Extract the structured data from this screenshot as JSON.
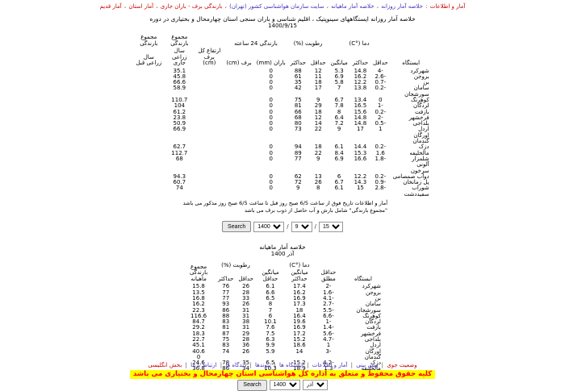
{
  "nav": {
    "items": [
      {
        "label": "آمار و اطلاعات",
        "color": "red",
        "sep": " : "
      },
      {
        "label": "خلاصه آمار روزانه",
        "color": "blue",
        "sep": " ، "
      },
      {
        "label": "خلاصه آمار ماهیانه",
        "color": "blue",
        "sep": " ، "
      },
      {
        "label": "سایت سازمان هواشناسی کشور (تهران)",
        "color": "blue",
        "sep": " ، "
      },
      {
        "label": "بارندگی برف - باران جاری",
        "color": "red",
        "sep": " ، "
      },
      {
        "label": "آمار استان",
        "color": "red",
        "sep": " ، "
      },
      {
        "label": "آمار قدیم",
        "color": "red",
        "sep": ""
      }
    ]
  },
  "title": {
    "line1": "خلاصه آمار روزانه ایستگاههای سینوپتیک ، اقلیم شناسی و باران سنجی استان چهارمحال و بختیاری در دوره",
    "date": "1400/9/15"
  },
  "table1": {
    "headers": {
      "station": "ایستگاه",
      "temp_group": "دما (°C)",
      "t_min": "حداقل",
      "t_max": "حداکثر",
      "t_mean": "میانگین",
      "humidity_group": "رطوبت (%)",
      "rh_min": "حداقل",
      "rh_max": "حداکثر",
      "precip24_group": "بارندگی 24 ساعته",
      "rain_mm": "باران (mm)",
      "snow_cm": "برف (cm)",
      "snow_depth": "ارتفاع کل برف (cm)",
      "total_group": "مجموع بارندگی",
      "year_current": "سال زراعی جاری",
      "year_prev": "سال زراعی قبل"
    },
    "rows": [
      [
        "شهرکرد",
        "-4",
        "14.8",
        "5.3",
        "12",
        "88",
        "0",
        "",
        "",
        "35.1",
        ""
      ],
      [
        "بروجن",
        "-2.6",
        "16.2",
        "6.9",
        "11",
        "61",
        "0",
        "",
        "",
        "45.8",
        ""
      ],
      [
        "بن",
        "-0.7",
        "12.2",
        "5.8",
        "18",
        "35",
        "0",
        "",
        "",
        "66.6",
        ""
      ],
      [
        "سامان",
        "-0.2",
        "13.8",
        "7",
        "17",
        "42",
        "0",
        "",
        "",
        "58.9",
        ""
      ],
      [
        "سورشجان",
        "",
        "",
        "",
        "",
        "",
        "",
        "",
        "",
        "",
        ""
      ],
      [
        "کوهرنگ",
        "0",
        "13.4",
        "6.7",
        "9",
        "75",
        "0",
        "",
        "",
        "110.7",
        ""
      ],
      [
        "لردگان",
        "-1",
        "16.5",
        "7.8",
        "29",
        "81",
        "0",
        "",
        "",
        "104",
        ""
      ],
      [
        "بازفت",
        "-0.2",
        "15.6",
        "8",
        "18",
        "66",
        "0",
        "",
        "",
        "61.2",
        ""
      ],
      [
        "فرخشهر",
        "-2",
        "14.8",
        "6.4",
        "12",
        "68",
        "0",
        "",
        "",
        "23.8",
        ""
      ],
      [
        "بلداجی",
        "-0.5",
        "14.8",
        "7.2",
        "14",
        "80",
        "0",
        "",
        "",
        "50.9",
        ""
      ],
      [
        "اردل",
        "1",
        "17",
        "9",
        "22",
        "73",
        "0",
        "",
        "",
        "66.9",
        ""
      ],
      [
        "اورگان",
        "",
        "",
        "",
        "",
        "",
        "",
        "",
        "",
        "",
        ""
      ],
      [
        "گندمان",
        "",
        "",
        "",
        "",
        "",
        "",
        "",
        "",
        "",
        ""
      ],
      [
        "دزک",
        "-0.2",
        "14.4",
        "6.1",
        "18",
        "94",
        "0",
        "",
        "",
        "62.7",
        ""
      ],
      [
        "مالخلیفه",
        "1.6",
        "15.3",
        "8.4",
        "22",
        "89",
        "0",
        "",
        "",
        "112.7",
        ""
      ],
      [
        "شلمزار",
        "-1.8",
        "16.6",
        "6.9",
        "9",
        "77",
        "0",
        "",
        "",
        "68",
        ""
      ],
      [
        "آلونی",
        "",
        "",
        "",
        "",
        "",
        "",
        "",
        "",
        "",
        ""
      ],
      [
        "سرخون",
        "",
        "",
        "",
        "",
        "",
        "",
        "",
        "",
        "",
        ""
      ],
      [
        "دوآب صمصامی",
        "-0.2",
        "12.2",
        "6",
        "13",
        "62",
        "0",
        "",
        "",
        "94.3",
        ""
      ],
      [
        "پل زمانخان",
        "-0.9",
        "14.3",
        "6.7",
        "26",
        "72",
        "0",
        "",
        "",
        "60.7",
        ""
      ],
      [
        "شوراب",
        "-2.8",
        "15",
        "6.1",
        "8",
        "9",
        "0",
        "",
        "",
        "74",
        ""
      ],
      [
        "سفیددشت",
        "",
        "",
        "",
        "",
        "",
        "",
        "",
        "",
        "",
        ""
      ]
    ]
  },
  "footnotes": {
    "line1": "آمار و اطلاعات تاریخ فوق از ساعت 6/5 صبح روز قبل تا ساعت 6/5 صبح روز مذکور می باشد",
    "line2": "\"مجموع بارندگی\" شامل بارش و آب حاصل از ذوب برف می باشد"
  },
  "daily_form": {
    "search_label": "Search",
    "year": "1400",
    "month": "9",
    "day": "15",
    "separator": "/"
  },
  "monthly": {
    "title": "خلاصه آمار ماهیانه",
    "period": "آذر 1400"
  },
  "table2": {
    "headers": {
      "station": "ایستگاه",
      "temp_group": "دما (°C)",
      "abs_min": "حداقل مطلق",
      "mean_max": "میانگین حداکثر",
      "mean_min": "میانگین حداقل",
      "humidity_group": "رطوبت (%)",
      "rh_min": "حداقل",
      "rh_max": "حداکثر",
      "precip_total": "مجموع بارندگی ماهیانه"
    },
    "rows": [
      [
        "شهرکرد",
        "-2",
        "17.4",
        "6.1",
        "26",
        "76",
        "15.8"
      ],
      [
        "بروجن",
        "-1.6",
        "16.2",
        "6.6",
        "28",
        "77",
        "13.5"
      ],
      [
        "بن",
        "-4.1",
        "16.9",
        "6.5",
        "33",
        "77",
        "16.8"
      ],
      [
        "سامان",
        "-2.7",
        "17.3",
        "8",
        "26",
        "93",
        "16.2"
      ],
      [
        "سورشجان",
        "-5.5",
        "18",
        "7",
        "31",
        "86",
        "22.3"
      ],
      [
        "کوهرنگ",
        "-6.6",
        "16.4",
        "6",
        "31",
        "88",
        "116.6"
      ],
      [
        "لردگان",
        "-1",
        "19.6",
        "10.1",
        "38",
        "83",
        "84.7"
      ],
      [
        "بازفت",
        "-1.4",
        "16.9",
        "7.6",
        "31",
        "81",
        "29.2"
      ],
      [
        "فرخشهر",
        "-5.6",
        "17.2",
        "7.5",
        "29",
        "87",
        "18.3"
      ],
      [
        "بلداجی",
        "-4.7",
        "15.2",
        "6.3",
        "28",
        "75",
        "22.7"
      ],
      [
        "اردل",
        "1",
        "18.6",
        "9.9",
        "36",
        "83",
        "45.1"
      ],
      [
        "اورگان",
        "-3",
        "14",
        "5.9",
        "26",
        "74",
        "40.6"
      ],
      [
        "گندمان",
        "",
        "",
        "",
        "",
        "",
        "0"
      ],
      [
        "دزک",
        "-4.2",
        "15.2",
        "6.5",
        "35",
        "78",
        "24.6"
      ],
      [
        "مالخلیفه",
        "1.3",
        "18.9",
        "10.3",
        "34",
        "86",
        "36.8"
      ]
    ]
  },
  "monthly_form": {
    "search_label": "Search",
    "year": "1400",
    "month": "آذر"
  },
  "footer": {
    "links": [
      {
        "label": "وضعیت جوی",
        "color": "red"
      },
      {
        "label": "پیش بینی",
        "color": "blue"
      },
      {
        "label": "آمار و اطلاعات",
        "color": "blue"
      },
      {
        "label": "ایستگاه ها",
        "color": "blue"
      },
      {
        "label": "پیوندها",
        "color": "blue"
      },
      {
        "label": "دیدگاه ها",
        "color": "blue"
      },
      {
        "label": "ارتباط با ما",
        "color": "blue"
      },
      {
        "label": "بخش انگلیسی",
        "color": "red"
      }
    ],
    "separator": "|"
  },
  "marquee": {
    "text": "کلیه حقوق محفوظ و متعلق به اداره کل هواشناسی استان چهارمحال و بختیاری می باشد",
    "text_color": "#ff0000",
    "highlight_color": "#ffff00"
  }
}
